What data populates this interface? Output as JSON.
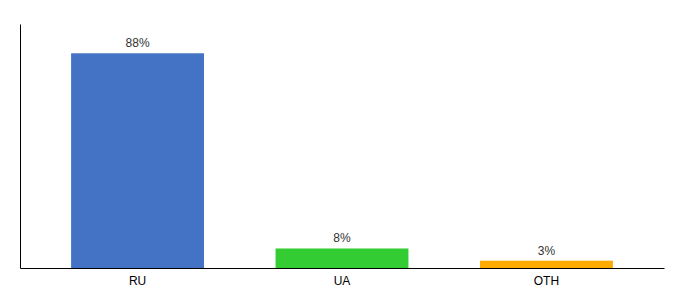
{
  "chart_data": {
    "type": "bar",
    "categories": [
      "RU",
      "UA",
      "OTH"
    ],
    "values": [
      88,
      8,
      3
    ],
    "value_labels": [
      "88%",
      "8%",
      "3%"
    ],
    "data_labels": true,
    "colors": [
      "#4472c4",
      "#33cc33",
      "#ffaa00"
    ],
    "ylim": [
      0,
      100
    ],
    "tick_labels": "x"
  }
}
